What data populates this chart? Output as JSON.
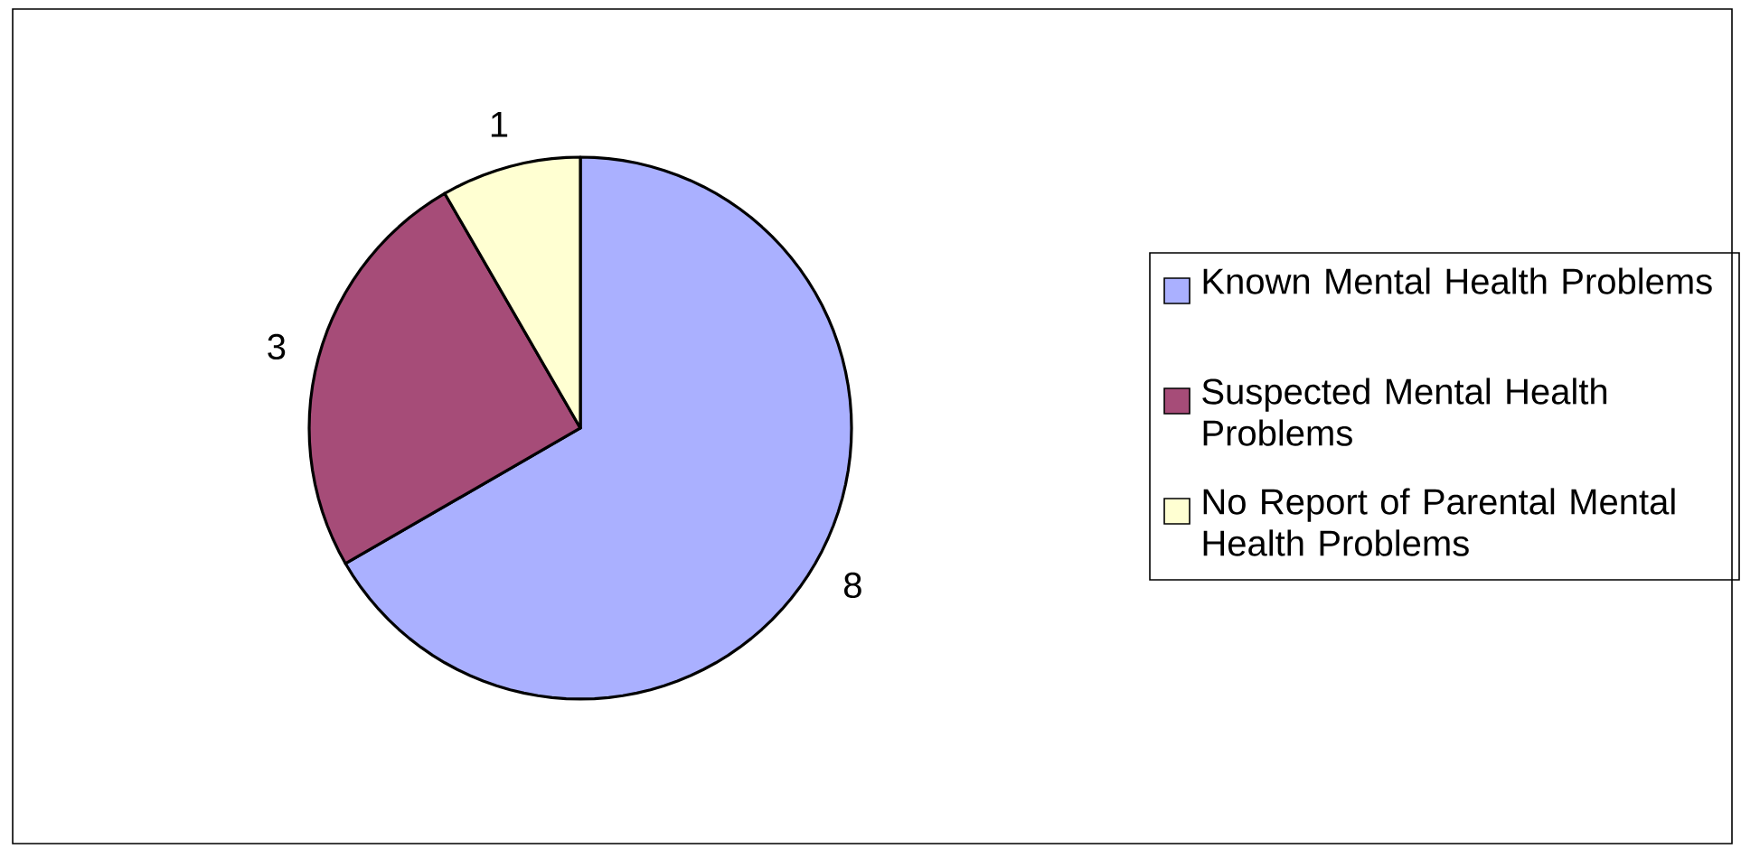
{
  "chart_data": {
    "type": "pie",
    "categories": [
      "Known Mental Health Problems",
      "Suspected Mental Health Problems",
      "No Report of Parental Mental Health Problems"
    ],
    "values": [
      8,
      3,
      1
    ],
    "colors": [
      "#aab0ff",
      "#a64c78",
      "#ffffd2"
    ],
    "data_labels": true,
    "legend": "right"
  }
}
